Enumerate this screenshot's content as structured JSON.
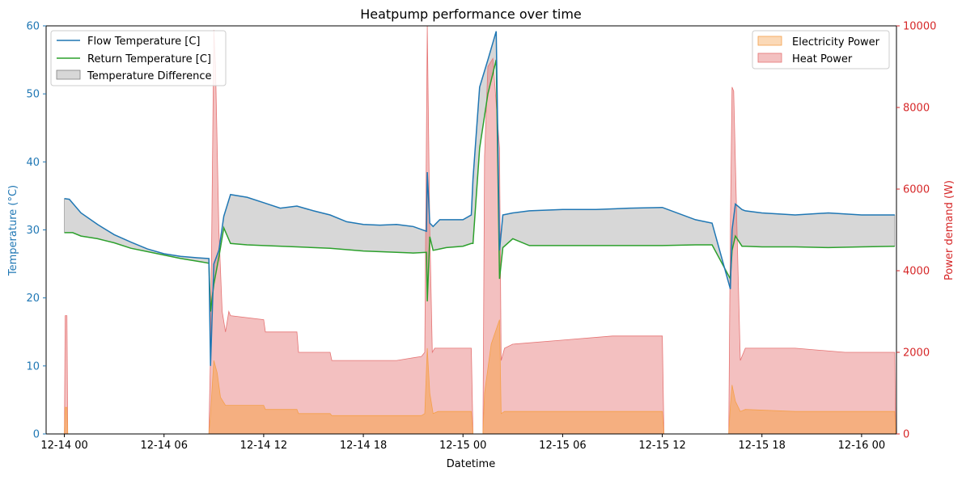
{
  "chart_data": {
    "type": "line",
    "title": "Heatpump performance over time",
    "xlabel": "Datetime",
    "ylabel_left": "Temperature (°C)",
    "ylabel_right": "Power demand (W)",
    "x_ticks": [
      "12-14 00",
      "12-14 06",
      "12-14 12",
      "12-14 18",
      "12-15 00",
      "12-15 06",
      "12-15 12",
      "12-15 18",
      "12-16 00"
    ],
    "x_range_hours": [
      -1.1,
      50.1
    ],
    "ylim_left": [
      0,
      60
    ],
    "ylim_right": [
      0,
      10000
    ],
    "y_ticks_left": [
      "0",
      "10",
      "20",
      "30",
      "40",
      "50",
      "60"
    ],
    "y_ticks_right": [
      "0",
      "2000",
      "4000",
      "6000",
      "8000",
      "10000"
    ],
    "legend_left": [
      "Flow Temperature [C]",
      "Return Temperature [C]",
      "Temperature Difference"
    ],
    "legend_right": [
      "Electricity Power",
      "Heat Power"
    ],
    "legend_left_placement": "upper-left",
    "legend_right_placement": "upper-right",
    "colors": {
      "flow": "#1f77b4",
      "return": "#2ca02c",
      "difference": "#b0b0b0",
      "electricity": "#f5a04a",
      "heat": "#e57373",
      "left_axis": "#1f77b4",
      "right_axis": "#d62728"
    },
    "series": [
      {
        "name": "Flow Temperature [C]",
        "axis": "left",
        "x_hours": [
          0,
          0.3,
          1,
          2,
          3,
          4,
          5,
          6,
          7,
          8,
          8.7,
          8.8,
          9,
          9.3,
          9.6,
          10,
          11,
          12,
          13,
          14,
          15,
          16,
          17,
          18,
          19,
          20,
          21,
          21.8,
          21.85,
          22,
          22.2,
          22.6,
          23,
          24,
          24.5,
          24.6,
          25,
          25.5,
          26,
          26.2,
          26.4,
          27,
          28,
          30,
          32,
          34,
          36,
          38,
          39,
          40.1,
          40.2,
          40.4,
          40.8,
          41,
          42,
          44,
          46,
          48,
          50
        ],
        "y": [
          34.6,
          34.5,
          32.5,
          30.8,
          29.3,
          28.2,
          27.2,
          26.5,
          26.1,
          25.9,
          25.8,
          10,
          25,
          27,
          32,
          35.2,
          34.8,
          34,
          33.2,
          33.5,
          32.8,
          32.2,
          31.2,
          30.8,
          30.7,
          30.8,
          30.5,
          29.8,
          38.5,
          31,
          30.5,
          31.5,
          31.5,
          31.5,
          32.2,
          37.5,
          51,
          55,
          59.2,
          27,
          32.2,
          32.5,
          32.8,
          33,
          33,
          33.2,
          33.3,
          31.5,
          31,
          21.3,
          30,
          33.8,
          33,
          32.8,
          32.5,
          32.2,
          32.5,
          32.2,
          32.2
        ]
      },
      {
        "name": "Return Temperature [C]",
        "axis": "left",
        "x_hours": [
          0,
          0.5,
          1,
          2,
          3,
          4,
          5,
          6,
          7,
          8,
          8.7,
          8.8,
          9,
          9.3,
          9.6,
          10,
          11,
          12,
          14,
          16,
          18,
          20,
          21,
          21.8,
          21.85,
          22,
          22.2,
          22.6,
          23,
          24,
          24.5,
          24.6,
          25,
          25.5,
          26,
          26.2,
          26.4,
          27,
          28,
          30,
          32,
          34,
          36,
          38,
          39,
          40.1,
          40.2,
          40.4,
          40.8,
          41,
          42,
          44,
          46,
          48,
          50
        ],
        "y": [
          29.6,
          29.6,
          29.1,
          28.7,
          28.1,
          27.3,
          26.8,
          26.3,
          25.8,
          25.4,
          25.1,
          18,
          22,
          26,
          30.3,
          28,
          27.8,
          27.7,
          27.5,
          27.3,
          26.9,
          26.7,
          26.6,
          26.7,
          19.5,
          29,
          27,
          27.2,
          27.4,
          27.6,
          28,
          28,
          42,
          50,
          55,
          22.8,
          27.4,
          28.7,
          27.7,
          27.7,
          27.7,
          27.7,
          27.7,
          27.8,
          27.8,
          22.8,
          27,
          29.1,
          27.6,
          27.6,
          27.5,
          27.5,
          27.4,
          27.5,
          27.6
        ]
      },
      {
        "name": "Heat Power",
        "axis": "right",
        "x_hours": [
          0,
          0.05,
          0.15,
          0.2,
          0.3,
          8.7,
          8.8,
          9,
          9.1,
          9.3,
          9.5,
          9.7,
          9.9,
          10,
          12,
          12.1,
          14,
          14.1,
          16,
          16.1,
          18,
          18.1,
          20,
          21.5,
          21.7,
          21.85,
          22,
          22.15,
          22.3,
          22.5,
          24.5,
          24.6,
          25.2,
          25.3,
          25.5,
          25.8,
          26.2,
          26.3,
          26.5,
          27,
          30,
          33,
          36,
          36.1,
          39,
          40,
          40.1,
          40.2,
          40.3,
          40.5,
          40.7,
          41,
          41.5,
          44,
          47,
          50,
          50.05
        ],
        "y": [
          0,
          2900,
          2900,
          0,
          0,
          0,
          2000,
          9900,
          9000,
          5000,
          3000,
          2500,
          3000,
          2900,
          2800,
          2500,
          2500,
          2000,
          2000,
          1800,
          1800,
          1800,
          1800,
          1900,
          2000,
          10000,
          5000,
          2000,
          2100,
          2100,
          2100,
          0,
          0,
          6800,
          9000,
          9200,
          7000,
          1800,
          2100,
          2200,
          2300,
          2400,
          2400,
          0,
          0,
          0,
          5000,
          8500,
          8400,
          5000,
          1800,
          2100,
          2100,
          2100,
          2000,
          2000,
          0
        ]
      },
      {
        "name": "Electricity Power",
        "axis": "right",
        "x_hours": [
          0,
          0.05,
          0.15,
          0.2,
          0.3,
          8.7,
          8.8,
          9,
          9.2,
          9.4,
          9.7,
          10,
          12,
          12.1,
          14,
          14.1,
          16,
          16.1,
          20,
          21.5,
          21.7,
          21.85,
          22,
          22.2,
          22.5,
          24.5,
          24.6,
          25.2,
          25.3,
          25.7,
          26.2,
          26.3,
          26.5,
          27,
          30,
          33,
          36,
          36.1,
          39,
          40,
          40.1,
          40.2,
          40.4,
          40.7,
          41,
          44,
          47,
          50,
          50.05
        ],
        "y": [
          0,
          650,
          650,
          0,
          0,
          0,
          500,
          1800,
          1500,
          900,
          700,
          700,
          700,
          600,
          600,
          500,
          500,
          450,
          450,
          450,
          500,
          2100,
          1000,
          500,
          550,
          550,
          0,
          0,
          1000,
          2200,
          2800,
          500,
          550,
          550,
          550,
          550,
          550,
          0,
          0,
          0,
          700,
          1200,
          800,
          550,
          600,
          550,
          550,
          550,
          0
        ]
      }
    ]
  }
}
